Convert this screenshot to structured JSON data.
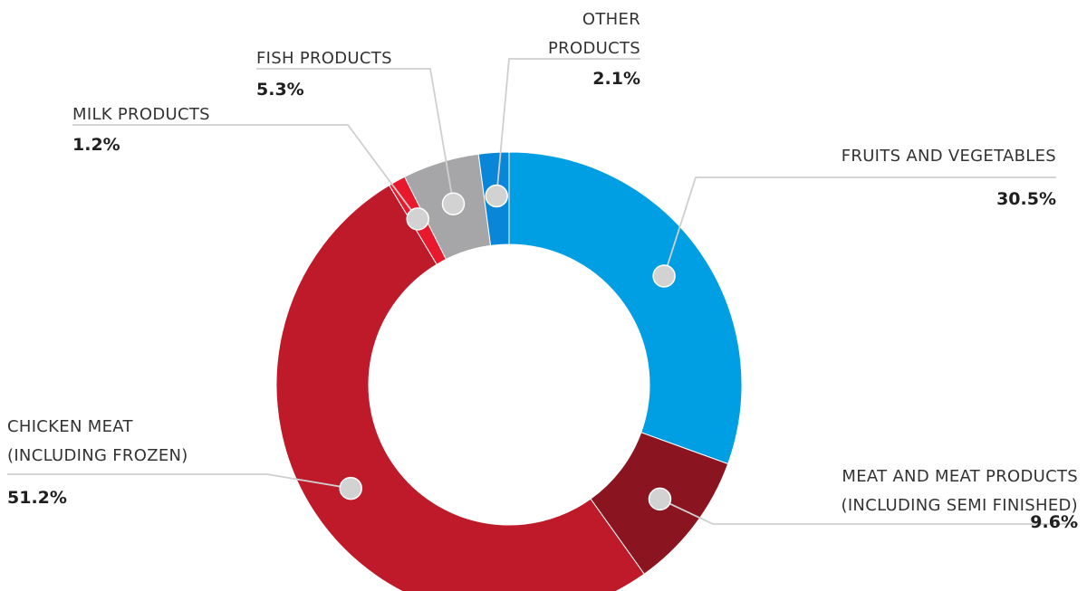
{
  "chart_data": {
    "type": "pie",
    "donut": true,
    "slices": [
      {
        "label_lines": [
          "FRUITS AND VEGETABLES"
        ],
        "value": 30.5,
        "value_label": "30.5%",
        "color": "#009fe3"
      },
      {
        "label_lines": [
          "MEAT AND MEAT PRODUCTS",
          "(INCLUDING SEMI FINISHED)"
        ],
        "value": 9.6,
        "value_label": "9.6%",
        "color": "#8a1420"
      },
      {
        "label_lines": [
          "CHICKEN MEAT",
          "(INCLUDING FROZEN)"
        ],
        "value": 51.2,
        "value_label": "51.2%",
        "color": "#be1a29"
      },
      {
        "label_lines": [
          "MILK PRODUCTS"
        ],
        "value": 1.2,
        "value_label": "1.2%",
        "color": "#e8192c"
      },
      {
        "label_lines": [
          "FISH PRODUCTS"
        ],
        "value": 5.3,
        "value_label": "5.3%",
        "color": "#a6a6a8"
      },
      {
        "label_lines": [
          "OTHER",
          "PRODUCTS"
        ],
        "value": 2.1,
        "value_label": "2.1%",
        "color": "#0a86d8"
      }
    ]
  }
}
